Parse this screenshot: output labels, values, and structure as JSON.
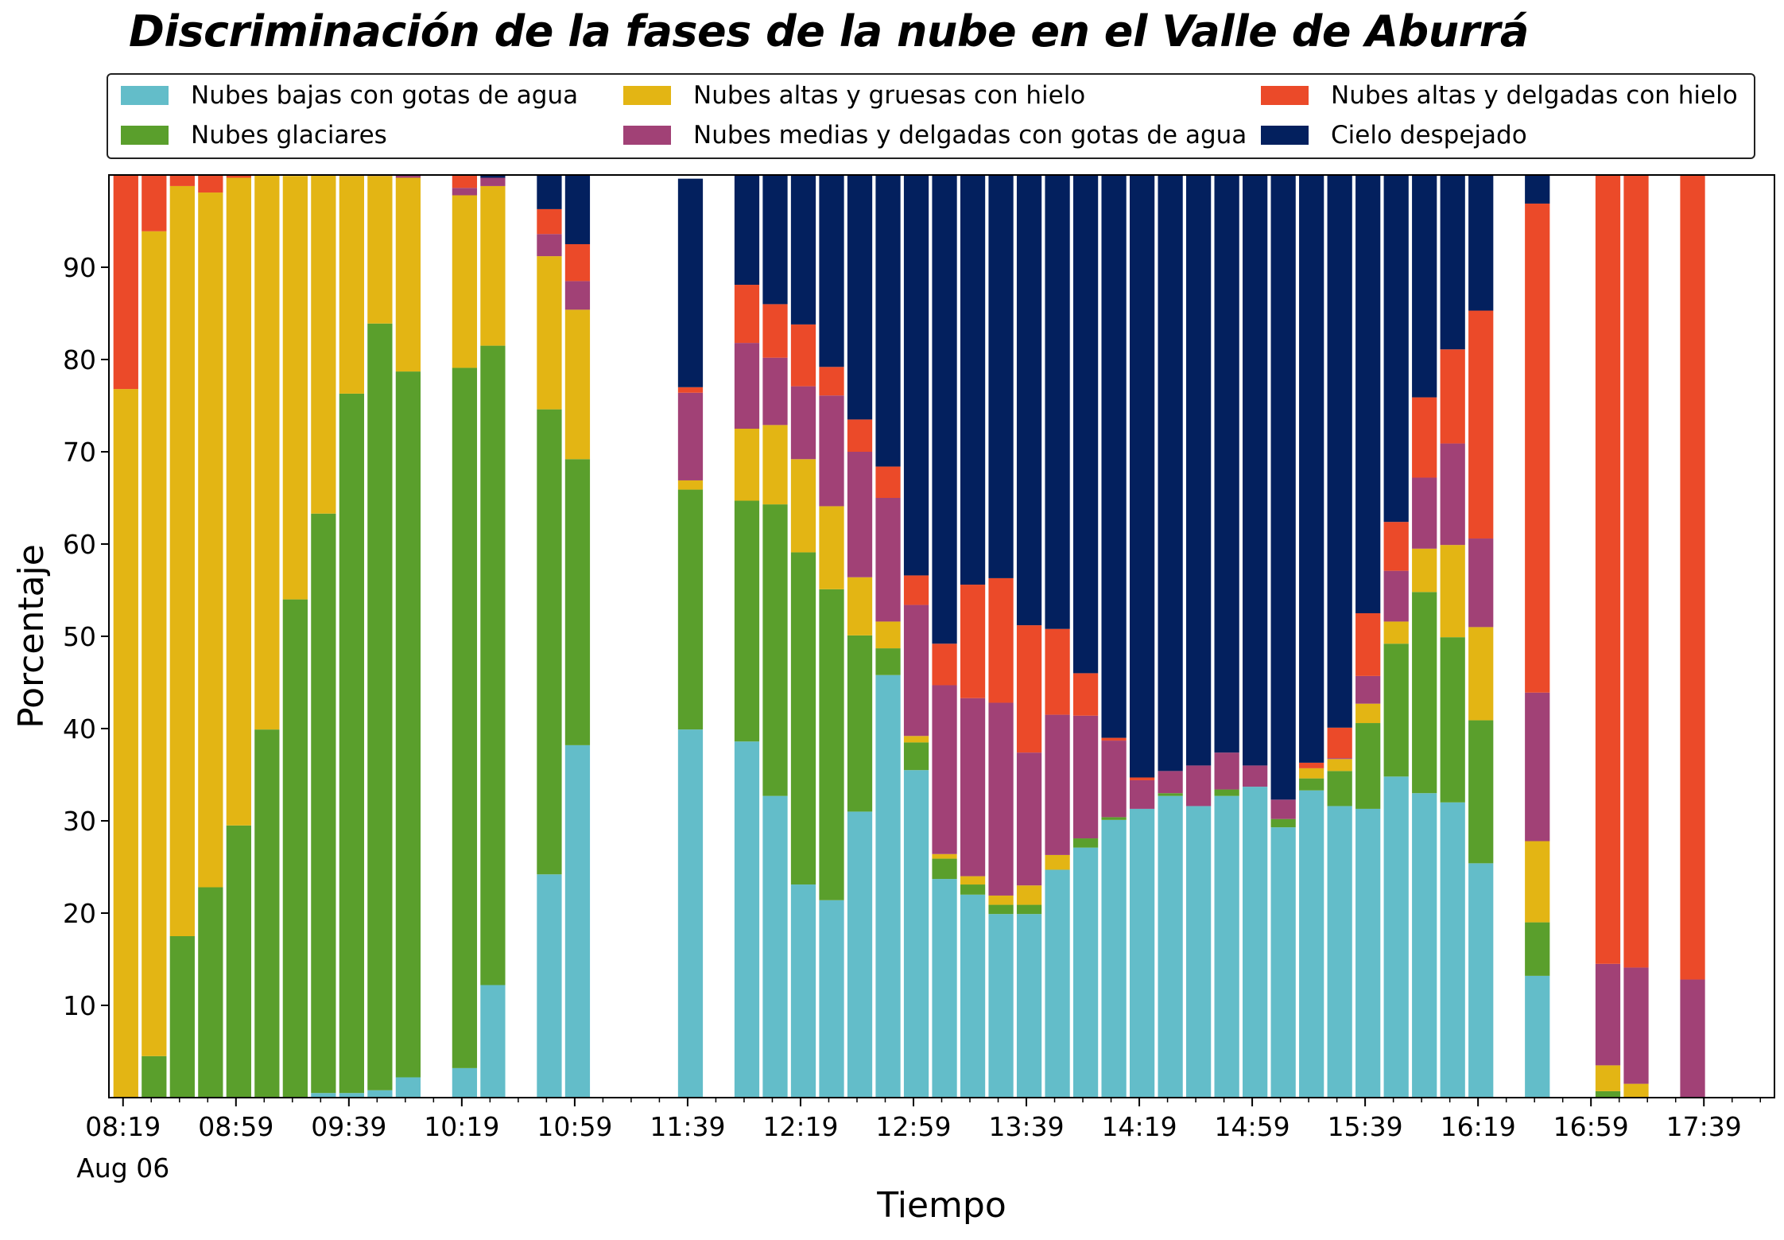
{
  "chart_data": {
    "type": "bar",
    "stacked": true,
    "title": "Discriminación de la fases de la nube en el Valle de Aburrá",
    "xlabel": "Tiempo",
    "ylabel": "Porcentaje",
    "ylim": [
      0,
      100
    ],
    "yticks": [
      10,
      20,
      30,
      40,
      50,
      60,
      70,
      80,
      90
    ],
    "xlim": [
      "08:14",
      "18:04"
    ],
    "xticks": [
      "08:19",
      "08:59",
      "09:39",
      "10:19",
      "10:59",
      "11:39",
      "12:19",
      "12:59",
      "13:39",
      "14:19",
      "14:59",
      "15:39",
      "16:19",
      "16:59",
      "17:39"
    ],
    "xtick_date": "Aug 06",
    "grid": false,
    "legend_position": "top",
    "x": [
      "08:20",
      "08:30",
      "08:40",
      "08:50",
      "09:00",
      "09:10",
      "09:20",
      "09:30",
      "09:40",
      "09:50",
      "10:00",
      "10:20",
      "10:30",
      "10:50",
      "11:00",
      "11:10",
      "11:40",
      "12:00",
      "12:10",
      "12:20",
      "12:30",
      "12:40",
      "12:50",
      "13:00",
      "13:10",
      "13:20",
      "13:30",
      "13:40",
      "13:50",
      "14:00",
      "14:10",
      "14:20",
      "14:30",
      "14:40",
      "14:50",
      "15:00",
      "15:10",
      "15:20",
      "15:30",
      "15:40",
      "15:50",
      "16:00",
      "16:10",
      "16:20",
      "16:40",
      "17:05",
      "17:15",
      "17:35"
    ],
    "series": [
      {
        "name": "Nubes bajas con gotas de agua",
        "color": "#63bdc9",
        "values": [
          0,
          0,
          0,
          0,
          0,
          0,
          0,
          0.5,
          0.5,
          0.8,
          2.2,
          3.2,
          12.2,
          24.2,
          38.2,
          0,
          39.9,
          38.6,
          32.7,
          23.1,
          21.4,
          31.0,
          45.8,
          35.5,
          23.7,
          22.0,
          19.9,
          19.9,
          24.7,
          27.1,
          30.1,
          31.3,
          32.7,
          31.6,
          32.7,
          33.7,
          29.3,
          33.3,
          31.6,
          31.3,
          34.8,
          33.0,
          32.0,
          25.4,
          13.2,
          0,
          0,
          0
        ]
      },
      {
        "name": "Nubes glaciares",
        "color": "#5a9f2c",
        "values": [
          0,
          4.5,
          17.5,
          22.8,
          29.5,
          39.9,
          54.0,
          62.8,
          75.8,
          83.1,
          76.5,
          75.9,
          69.3,
          50.4,
          31.0,
          0,
          26.0,
          26.1,
          31.6,
          36.0,
          33.7,
          19.1,
          2.9,
          3.0,
          2.2,
          1.1,
          1.0,
          1.0,
          0,
          1.0,
          0.3,
          0,
          0.3,
          0,
          0.7,
          0,
          0.9,
          1.3,
          3.8,
          9.3,
          14.4,
          21.8,
          17.9,
          15.5,
          5.8,
          0.7,
          0,
          0
        ]
      },
      {
        "name": "Nubes altas y gruesas con hielo",
        "color": "#e3b514",
        "values": [
          76.8,
          89.4,
          81.3,
          75.3,
          70.2,
          60.1,
          45.9,
          37.0,
          23.6,
          16.0,
          21.0,
          18.7,
          17.3,
          16.6,
          16.2,
          0,
          1.0,
          7.8,
          8.6,
          10.1,
          9.0,
          6.3,
          2.9,
          0.7,
          0.5,
          0.9,
          1.0,
          2.1,
          1.6,
          0,
          0,
          0,
          0,
          0,
          0,
          0,
          0,
          1.1,
          1.3,
          2.1,
          2.4,
          4.7,
          10.0,
          10.1,
          8.8,
          2.8,
          1.5,
          0
        ]
      },
      {
        "name": "Nubes medias y delgadas con gotas de agua",
        "color": "#a14176",
        "values": [
          0,
          0,
          0,
          0,
          0,
          0,
          0,
          0,
          0.4,
          0.1,
          0.5,
          0.8,
          0.9,
          2.4,
          3.1,
          0,
          9.5,
          9.3,
          7.3,
          7.9,
          12.0,
          13.6,
          13.4,
          14.2,
          18.3,
          19.3,
          20.9,
          14.4,
          15.2,
          13.3,
          8.3,
          3.1,
          2.4,
          4.4,
          4.0,
          2.3,
          2.1,
          0,
          0.1,
          3.0,
          5.5,
          7.7,
          11.0,
          9.6,
          16.1,
          11.0,
          12.6,
          12.8
        ]
      },
      {
        "name": "Nubes altas y delgadas con hielo",
        "color": "#eb4a29",
        "values": [
          23.2,
          6.1,
          1.2,
          1.9,
          0.3,
          0,
          0,
          0,
          0,
          0,
          0,
          1.6,
          0,
          2.7,
          4.0,
          0,
          0.6,
          6.3,
          5.8,
          6.7,
          3.1,
          3.5,
          3.4,
          3.2,
          4.5,
          12.3,
          13.5,
          13.8,
          9.3,
          4.6,
          0.3,
          0.3,
          0,
          0,
          0,
          0,
          0,
          0.6,
          3.3,
          6.8,
          5.3,
          8.7,
          10.2,
          24.7,
          53.0,
          85.5,
          85.9,
          87.2
        ]
      },
      {
        "name": "Cielo despejado",
        "color": "#03205e",
        "values": [
          0,
          0,
          0,
          0,
          0,
          0,
          0,
          0,
          0,
          0,
          0,
          0,
          0.3,
          3.7,
          7.5,
          0,
          22.6,
          11.9,
          14.0,
          16.2,
          20.8,
          26.5,
          31.6,
          43.4,
          50.8,
          44.4,
          43.7,
          48.8,
          49.2,
          54.0,
          61.0,
          65.3,
          64.6,
          64.0,
          62.6,
          64.0,
          67.7,
          63.7,
          59.9,
          47.5,
          37.6,
          24.1,
          18.9,
          14.7,
          3.1,
          0,
          0,
          0
        ]
      }
    ]
  }
}
